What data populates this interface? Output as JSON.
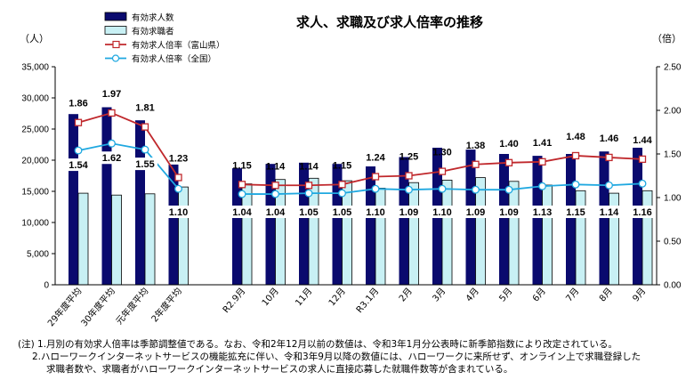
{
  "chart_data": {
    "type": "bar",
    "title": "求人、求職及び求人倍率の推移",
    "left_axis_unit": "（人）",
    "right_axis_unit": "（倍）",
    "categories": [
      "29年度平均",
      "30年度平均",
      "元年度平均",
      "2年度平均",
      "R2.9月",
      "10月",
      "11月",
      "12月",
      "R3.1月",
      "2月",
      "3月",
      "4月",
      "5月",
      "6月",
      "7月",
      "8月",
      "9月"
    ],
    "left_ticks": [
      "0",
      "5,000",
      "10,000",
      "15,000",
      "20,000",
      "25,000",
      "30,000",
      "35,000"
    ],
    "right_ticks": [
      "0.00",
      "0.50",
      "1.00",
      "1.50",
      "2.00",
      "2.50"
    ],
    "left_ylim": [
      0,
      35000
    ],
    "right_ylim": [
      0,
      2.5
    ],
    "series": [
      {
        "name": "有効求人数",
        "kind": "bar",
        "axis": "left",
        "color": "#0a0a6e",
        "values": [
          27400,
          28500,
          26400,
          19300,
          18700,
          19400,
          19600,
          19400,
          19000,
          20500,
          22000,
          21700,
          21000,
          20700,
          21000,
          21400,
          22000
        ]
      },
      {
        "name": "有効求職者",
        "kind": "bar",
        "axis": "left",
        "color": "#c8f0f4",
        "values": [
          14700,
          14400,
          14600,
          15700,
          16200,
          16900,
          17100,
          16700,
          15500,
          16400,
          16800,
          17200,
          16600,
          16000,
          15100,
          14700,
          15100
        ]
      },
      {
        "name": "有効求人倍率（富山県）",
        "kind": "line",
        "axis": "right",
        "color": "#c0282c",
        "marker": "square",
        "values": [
          1.86,
          1.97,
          1.81,
          1.23,
          1.15,
          1.14,
          1.14,
          1.15,
          1.24,
          1.25,
          1.3,
          1.38,
          1.4,
          1.41,
          1.48,
          1.46,
          1.44
        ]
      },
      {
        "name": "有効求人倍率（全国）",
        "kind": "line",
        "axis": "right",
        "color": "#1fa8e0",
        "marker": "circle",
        "values": [
          1.54,
          1.62,
          1.55,
          1.1,
          1.04,
          1.04,
          1.05,
          1.05,
          1.1,
          1.09,
          1.1,
          1.09,
          1.09,
          1.13,
          1.15,
          1.14,
          1.16
        ]
      }
    ],
    "grid": false,
    "legend_position": "top-left"
  },
  "notes": [
    "(注) 1.月別の有効求人倍率は季節調整値である。なお、令和2年12月以前の数値は、令和3年1月分公表時に新季節指数により改定されている。",
    "2.ハローワークインターネットサービスの機能拡充に伴い、令和3年9月以降の数値には、ハローワークに来所せず、オンライン上で求職登録した",
    "求職者数や、求職者がハローワークインターネットサービスの求人に直接応募した就職件数等が含まれている。"
  ]
}
